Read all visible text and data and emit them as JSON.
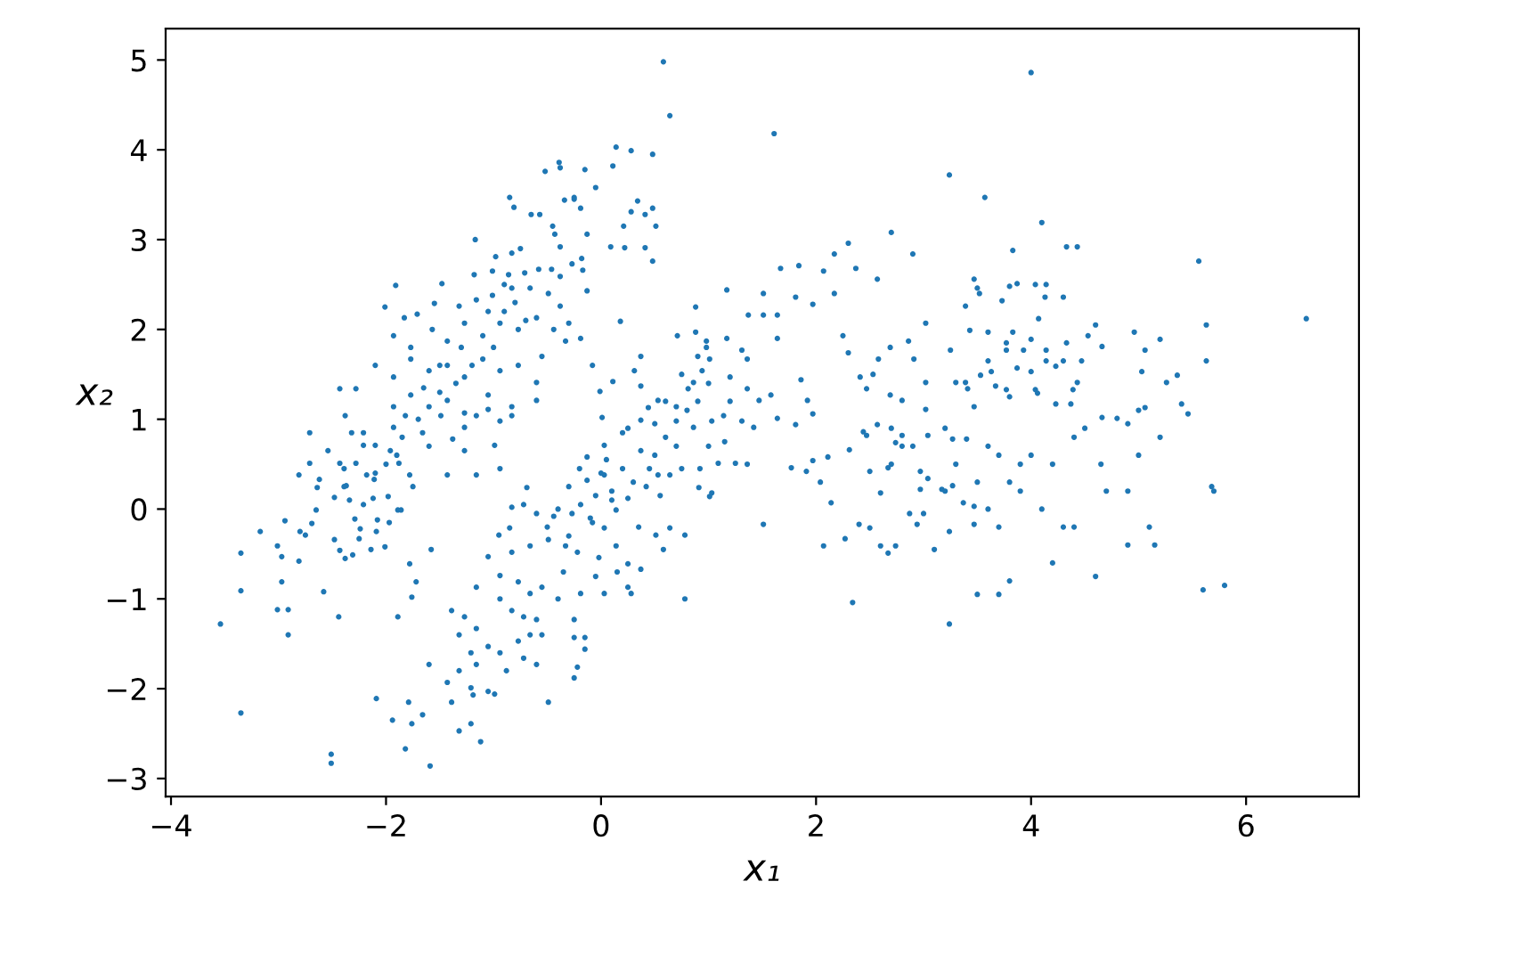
{
  "chart_data": {
    "type": "scatter",
    "xlabel": "x₁",
    "ylabel": "x₂",
    "color": "#1f77b4",
    "marker": "circle",
    "xlim": [
      -4.05,
      7.05
    ],
    "ylim": [
      -3.2,
      5.35
    ],
    "xticks": [
      {
        "value": -4,
        "label": "−4"
      },
      {
        "value": -2,
        "label": "−2"
      },
      0,
      2,
      4,
      6
    ],
    "yticks": [
      {
        "value": -3,
        "label": "−3"
      },
      {
        "value": -2,
        "label": "−2"
      },
      {
        "value": -1,
        "label": "−1"
      },
      0,
      1,
      2,
      3,
      4,
      5
    ],
    "x": [
      0.58,
      0.64,
      1.61,
      3.24,
      0.14,
      0.28,
      0.48,
      -0.15,
      0.11,
      -0.05,
      -0.25,
      -0.19,
      0.34,
      0.28,
      0.41,
      0.48,
      0.21,
      0.51,
      -0.13,
      0.09,
      0.22,
      0.41,
      0.48,
      -0.18,
      -0.17,
      -0.13,
      1.17,
      0.88,
      0.18,
      1.67,
      1.84,
      2.17,
      2.3,
      2.7,
      2.9,
      2.07,
      2.37,
      2.57,
      1.51,
      1.81,
      1.97,
      2.17,
      1.37,
      1.51,
      1.64,
      0.71,
      0.88,
      0.98,
      1.17,
      1.31,
      1.36,
      1.64,
      0.98,
      1.01,
      0.94,
      0.86,
      0.37,
      0.31,
      0.11,
      -0.01,
      0.37,
      0.53,
      0.7,
      0.81,
      -0.08,
      -0.3,
      -0.19,
      1.2,
      1.36,
      1.47,
      1.58,
      1.86,
      1.92,
      2.25,
      2.3,
      2.41,
      2.53,
      2.47,
      2.69,
      2.8,
      3.02,
      3.02,
      3.25,
      3.3,
      3.41,
      3.52,
      2.86,
      2.91,
      2.58,
      2.69,
      1.64,
      1.81,
      1.97,
      4.0,
      3.57,
      4.1,
      3.83,
      4.33,
      4.43,
      5.56,
      6.56,
      5.63,
      5.63,
      3.47,
      3.5,
      3.8,
      3.87,
      4.04,
      4.14,
      3.73,
      4.13,
      4.3,
      4.07,
      4.6,
      4.53,
      4.96,
      5.2,
      5.06,
      4.66,
      3.43,
      3.6,
      3.83,
      4.0,
      3.77,
      3.77,
      3.93,
      4.14,
      4.14,
      4.23,
      4.3,
      4.33,
      4.47,
      5.03,
      5.26,
      5.36,
      3.6,
      3.63,
      3.87,
      4.0,
      3.53,
      3.67,
      3.77,
      3.8,
      4.04,
      4.06,
      4.39,
      4.43,
      4.23,
      4.37,
      5.4,
      5.46,
      5.0,
      5.06,
      4.66,
      4.8,
      3.39,
      3.39,
      3.47,
      -0.25,
      -0.22,
      -0.15,
      -0.15,
      -0.25,
      -0.25,
      0.78,
      2.34,
      3.24,
      1.51,
      2.07,
      2.27,
      2.4,
      2.5,
      2.6,
      2.67,
      2.74,
      2.87,
      2.94,
      3.0,
      3.1,
      3.24,
      2.14,
      1.77,
      1.91,
      1.97,
      2.11,
      2.04,
      2.31,
      2.5,
      2.6,
      2.44,
      2.47,
      2.57,
      2.7,
      2.67,
      2.7,
      2.74,
      2.8,
      2.9,
      2.8,
      3.04,
      2.97,
      3.04,
      2.97,
      3.17,
      3.27,
      3.3,
      3.27,
      3.4,
      3.37,
      3.47,
      3.47,
      3.02,
      0.01,
      0.37,
      0.44,
      0.7,
      0.86,
      1.03,
      1.14,
      1.31,
      1.42,
      1.25,
      1.36,
      1.01,
      0.91,
      0.78,
      0.64,
      0.58,
      0.51,
      0.37,
      0.25,
      0.28,
      0.03,
      -0.19,
      -0.02,
      0.25,
      0.42,
      0.53,
      0.64,
      0.75,
      0.92,
      1.09,
      1.03,
      -0.3,
      -0.19,
      -0.08,
      0.03,
      0.14,
      0.25,
      0.14,
      -0.13,
      0.03,
      0.2,
      0.37,
      -0.13,
      0.03,
      0.2,
      0.5,
      0.6,
      0.7,
      0.8,
      0.9,
      1.0,
      0.9,
      0.75,
      0.6,
      0.3,
      0.1,
      -0.1,
      -0.3,
      -0.4,
      -0.5,
      0.0,
      0.45,
      0.55,
      0.35,
      0.15,
      -0.05,
      -0.35,
      -0.4,
      0.05,
      0.25,
      0.5,
      1.15,
      1.2,
      1.0,
      0.1,
      -0.2,
      -0.05,
      -3.54,
      -3.35,
      -2.51,
      -2.51,
      -1.59,
      -1.82,
      -2.09,
      -1.94,
      -1.79,
      -1.76,
      -1.66,
      -1.32,
      -1.21,
      -1.12,
      -1.39,
      -1.19,
      -1.05,
      -0.49,
      -3.35,
      -3.35,
      -3.17,
      -3.01,
      -2.91,
      -2.91,
      -2.97,
      -3.01,
      -2.97,
      -2.94,
      -2.81,
      -2.58,
      -2.44,
      -1.89,
      -1.78,
      -1.72,
      -1.76,
      -1.58,
      -2.8,
      -2.75,
      -2.69,
      -2.48,
      -2.43,
      -2.38,
      -2.31,
      -2.14,
      -2.01,
      -2.25,
      -2.09,
      -2.65,
      -2.48,
      -2.39,
      -2.34,
      -2.24,
      -2.29,
      -2.21,
      -2.08,
      -1.97,
      -1.89,
      -1.86,
      -1.98,
      -2.12,
      -2.81,
      -2.71,
      -2.62,
      -2.64,
      -2.54,
      -2.43,
      -2.37,
      -2.39,
      -2.71,
      -2.32,
      -2.21,
      -2.28,
      -2.18,
      -2.11,
      -1.96,
      -1.88,
      -1.78,
      -1.75,
      -1.43,
      -1.27,
      -1.16,
      -0.99,
      -0.94,
      -1.05,
      -0.83,
      -0.69,
      -0.83,
      -0.72,
      -0.6,
      -0.44,
      -0.27,
      -0.95,
      -0.85,
      -1.05,
      -0.83,
      -0.66,
      -0.49,
      -0.33,
      -0.22,
      -1.16,
      -0.94,
      -0.77,
      -0.66,
      -0.55,
      -0.94,
      -0.83,
      -0.72,
      -0.6,
      -0.55,
      -0.66,
      -0.77,
      -1.39,
      -1.27,
      -1.32,
      -1.16,
      -1.21,
      -1.05,
      -1.16,
      -1.32,
      -1.43,
      -1.6,
      -0.94,
      -0.88,
      -0.99,
      -1.21,
      -0.72,
      -0.6,
      -0.52,
      -0.39,
      -0.38,
      -0.85,
      -0.81,
      -0.65,
      -0.57,
      -0.45,
      -0.43,
      -0.34,
      -0.25,
      -1.17,
      -0.38,
      -0.27,
      -0.98,
      -0.83,
      -0.75,
      -1.18,
      -1.01,
      -0.86,
      -0.71,
      -0.58,
      -0.46,
      -0.38,
      -1.91,
      -1.48,
      -2.01,
      -1.83,
      -1.71,
      -1.55,
      -1.32,
      -1.16,
      -1.01,
      -0.83,
      -0.66,
      -0.49,
      -0.38,
      -1.93,
      -1.77,
      -1.57,
      -1.43,
      -1.27,
      -1.1,
      -0.94,
      -0.77,
      -0.6,
      -0.44,
      -0.33,
      -2.1,
      -1.93,
      -1.77,
      -1.6,
      -1.43,
      -1.27,
      -1.1,
      -0.94,
      -0.77,
      -0.6,
      -2.43,
      -2.28,
      -1.93,
      -1.77,
      -1.6,
      -1.43,
      -1.27,
      -1.05,
      -0.83,
      -0.6,
      -2.38,
      -2.21,
      -2.1,
      -1.93,
      -1.82,
      -1.66,
      -1.49,
      -1.38,
      -1.27,
      -1.16,
      -0.94,
      -1.5,
      -1.35,
      -1.2,
      -1.0,
      -0.9,
      -0.8,
      -0.7,
      -1.7,
      -1.85,
      -2.0,
      -2.1,
      -1.6,
      -1.5,
      -1.3,
      -1.05,
      -0.9,
      -0.55,
      -1.9,
      -1.65,
      3.5,
      3.6,
      3.7,
      3.8,
      3.9,
      3.5,
      3.7,
      3.8,
      4.2,
      4.6,
      4.9,
      5.1,
      5.15,
      5.7,
      5.68,
      5.6,
      5.8,
      4.4,
      4.3,
      4.1,
      4.7,
      4.65,
      5.0,
      5.2,
      4.2,
      4.4,
      3.9,
      4.0,
      3.6,
      3.2,
      4.5,
      3.7,
      3.2,
      4.9,
      4.9
    ],
    "values": [
      4.98,
      4.38,
      4.18,
      3.72,
      4.03,
      3.99,
      3.95,
      3.78,
      3.82,
      3.58,
      3.47,
      3.35,
      3.43,
      3.31,
      3.28,
      3.35,
      3.15,
      3.15,
      3.06,
      2.92,
      2.91,
      2.91,
      2.76,
      2.79,
      2.66,
      2.43,
      2.44,
      2.25,
      2.09,
      2.68,
      2.71,
      2.84,
      2.96,
      3.08,
      2.84,
      2.65,
      2.68,
      2.56,
      2.4,
      2.36,
      2.28,
      2.4,
      2.16,
      2.16,
      2.16,
      1.93,
      1.97,
      1.87,
      1.9,
      1.77,
      1.67,
      1.9,
      1.8,
      1.67,
      1.54,
      1.41,
      1.7,
      1.54,
      1.42,
      1.31,
      1.37,
      1.21,
      1.14,
      1.34,
      1.6,
      2.07,
      1.9,
      1.47,
      1.34,
      1.21,
      1.27,
      1.44,
      1.21,
      1.93,
      1.74,
      1.47,
      1.5,
      1.34,
      1.27,
      1.21,
      2.07,
      1.41,
      1.77,
      1.41,
      1.34,
      2.4,
      1.87,
      1.67,
      1.67,
      1.8,
      1.01,
      0.94,
      1.06,
      4.86,
      3.47,
      3.19,
      2.88,
      2.92,
      2.92,
      2.76,
      2.12,
      2.05,
      1.65,
      2.56,
      2.46,
      2.48,
      2.51,
      2.5,
      2.5,
      2.32,
      2.36,
      2.36,
      2.12,
      2.05,
      1.93,
      1.97,
      1.89,
      1.77,
      1.81,
      1.99,
      1.97,
      1.97,
      1.89,
      1.85,
      1.77,
      1.77,
      1.77,
      1.65,
      1.59,
      1.65,
      1.85,
      1.65,
      1.53,
      1.41,
      1.49,
      1.65,
      1.53,
      1.57,
      1.53,
      1.49,
      1.37,
      1.33,
      1.25,
      1.33,
      1.29,
      1.33,
      1.41,
      1.17,
      1.17,
      1.17,
      1.06,
      1.1,
      1.13,
      1.02,
      1.01,
      2.26,
      1.41,
      1.14,
      -1.88,
      -1.76,
      -1.43,
      -1.56,
      -1.43,
      -1.23,
      -1.0,
      -1.04,
      -1.28,
      -0.17,
      -0.41,
      -0.33,
      -0.17,
      -0.21,
      -0.41,
      -0.49,
      -0.41,
      -0.05,
      -0.17,
      -0.05,
      -0.45,
      -0.25,
      0.07,
      0.46,
      0.42,
      0.54,
      0.58,
      0.3,
      0.66,
      0.42,
      0.18,
      0.86,
      0.82,
      0.94,
      0.9,
      0.46,
      0.5,
      0.74,
      0.7,
      0.7,
      0.82,
      0.82,
      0.42,
      0.34,
      0.22,
      0.22,
      0.26,
      0.5,
      0.78,
      0.78,
      0.07,
      0.03,
      -0.17,
      1.11,
      1.02,
      0.99,
      1.13,
      0.98,
      0.91,
      0.98,
      1.04,
      0.98,
      0.91,
      0.51,
      0.5,
      0.14,
      0.24,
      -0.29,
      -0.21,
      -0.45,
      -0.29,
      -0.67,
      -0.87,
      -0.94,
      -0.94,
      -0.94,
      -0.54,
      -0.61,
      0.25,
      0.38,
      0.38,
      0.45,
      0.45,
      0.51,
      0.18,
      0.25,
      0.05,
      -0.15,
      -0.21,
      -0.01,
      0.12,
      -0.41,
      0.58,
      0.71,
      0.85,
      0.65,
      0.32,
      0.38,
      0.45,
      0.6,
      0.8,
      0.7,
      1.1,
      1.2,
      1.4,
      1.7,
      1.5,
      1.2,
      0.3,
      0.1,
      -0.1,
      -0.3,
      0.0,
      -0.2,
      0.4,
      0.45,
      0.15,
      -0.2,
      -0.7,
      -0.75,
      -0.7,
      -1.0,
      0.55,
      0.9,
      0.95,
      0.75,
      1.2,
      0.7,
      0.2,
      0.45,
      0.15,
      -1.28,
      -2.27,
      -2.73,
      -2.83,
      -2.86,
      -2.67,
      -2.11,
      -2.35,
      -2.15,
      -2.39,
      -2.29,
      -2.47,
      -2.39,
      -2.59,
      -2.15,
      -2.07,
      -2.03,
      -2.15,
      -0.91,
      -0.49,
      -0.25,
      -1.12,
      -1.12,
      -1.4,
      -0.81,
      -0.41,
      -0.53,
      -0.13,
      -0.58,
      -0.92,
      -1.2,
      -1.2,
      -0.61,
      -0.81,
      -0.98,
      -0.45,
      -0.25,
      -0.29,
      -0.16,
      -0.34,
      -0.46,
      -0.55,
      -0.51,
      -0.45,
      -0.42,
      -0.33,
      -0.25,
      -0.01,
      0.13,
      0.25,
      0.1,
      -0.22,
      -0.11,
      0.05,
      -0.12,
      -0.15,
      -0.01,
      -0.01,
      0.14,
      0.12,
      0.38,
      0.51,
      0.33,
      0.24,
      0.65,
      0.51,
      0.26,
      0.45,
      0.85,
      0.85,
      0.71,
      0.51,
      0.38,
      0.33,
      0.65,
      0.51,
      0.38,
      0.25,
      0.38,
      0.65,
      0.38,
      0.71,
      0.45,
      1.11,
      1.04,
      0.24,
      0.02,
      0.05,
      -0.05,
      -0.08,
      -0.05,
      -0.29,
      -0.21,
      -0.53,
      -0.48,
      -0.41,
      -0.34,
      -0.41,
      -0.48,
      -0.87,
      -0.74,
      -0.81,
      -0.94,
      -0.87,
      -1.0,
      -1.13,
      -1.2,
      -1.23,
      -1.4,
      -1.4,
      -1.47,
      -1.13,
      -1.2,
      -1.4,
      -1.33,
      -1.6,
      -1.53,
      -1.73,
      -1.8,
      -1.93,
      -1.73,
      -1.6,
      -1.8,
      -2.06,
      -1.99,
      -1.66,
      -1.73,
      3.76,
      3.86,
      3.8,
      3.47,
      3.36,
      3.28,
      3.28,
      3.15,
      3.06,
      3.44,
      3.45,
      3.0,
      2.92,
      2.73,
      2.81,
      2.85,
      2.9,
      2.61,
      2.65,
      2.61,
      2.63,
      2.67,
      2.67,
      2.59,
      2.49,
      2.51,
      2.25,
      2.13,
      2.17,
      2.29,
      2.26,
      2.33,
      2.38,
      2.46,
      2.46,
      2.4,
      2.26,
      1.93,
      1.8,
      2.0,
      1.87,
      2.07,
      1.93,
      2.07,
      2.0,
      2.13,
      2.0,
      1.87,
      1.6,
      1.47,
      1.67,
      1.54,
      1.6,
      1.47,
      1.67,
      1.54,
      1.6,
      1.41,
      1.34,
      1.34,
      1.14,
      1.27,
      1.14,
      1.21,
      1.07,
      1.27,
      1.14,
      1.21,
      1.04,
      0.85,
      0.71,
      0.91,
      1.04,
      0.85,
      1.04,
      0.78,
      0.91,
      1.04,
      0.98,
      1.3,
      1.4,
      1.6,
      1.8,
      2.2,
      2.3,
      2.1,
      1.0,
      0.8,
      0.5,
      0.4,
      0.7,
      1.6,
      1.8,
      2.2,
      2.5,
      1.7,
      0.6,
      1.35,
      0.3,
      0.0,
      -0.2,
      0.3,
      0.2,
      -0.95,
      -0.95,
      -0.8,
      -0.6,
      -0.75,
      -0.4,
      -0.2,
      -0.4,
      0.2,
      0.25,
      -0.9,
      -0.85,
      -0.2,
      -0.2,
      0.0,
      0.2,
      0.5,
      0.6,
      0.8,
      0.5,
      0.8,
      0.5,
      0.6,
      0.7,
      0.9,
      0.9,
      0.6,
      0.2,
      0.2,
      0.95
    ]
  }
}
